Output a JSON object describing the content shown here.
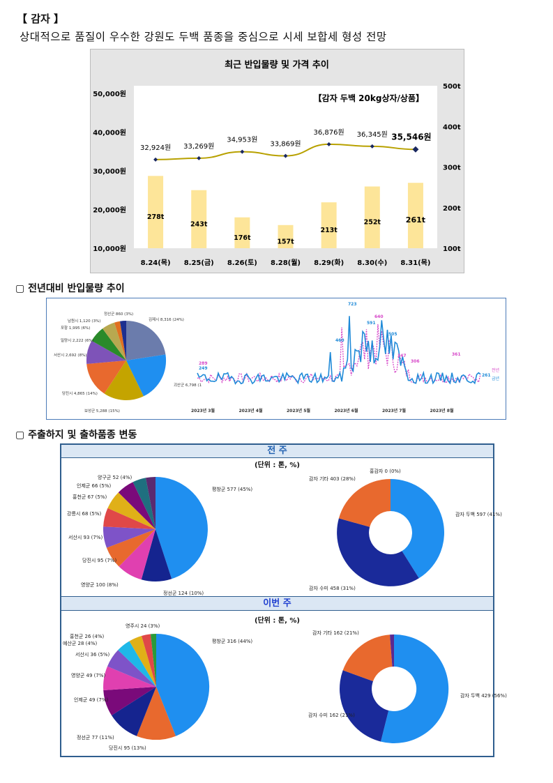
{
  "header": {
    "section_title": "【 감자 】",
    "subtitle": "상대적으로 품질이 우수한 강원도 두백 품종을 중심으로 시세 보합세 형성 전망"
  },
  "chart1": {
    "title": "최근 반입물량 및 가격 추이",
    "legend_note": "【감자 두백 20kg상자/상품】",
    "chart_data": {
      "type": "bar",
      "categories": [
        "8.24(목)",
        "8.25(금)",
        "8.26(토)",
        "8.28(월)",
        "8.29(화)",
        "8.30(수)",
        "8.31(목)"
      ],
      "series": [
        {
          "values": [
            278,
            243,
            176,
            157,
            213,
            252,
            261
          ],
          "labels": [
            "278t",
            "243t",
            "176t",
            "157t",
            "213t",
            "252t",
            "261t"
          ],
          "color": "#fde599"
        },
        {
          "values": [
            32924,
            33269,
            34953,
            33869,
            36876,
            36345,
            35546
          ],
          "labels": [
            "32,924원",
            "33,269원",
            "34,953원",
            "33,869원",
            "36,876원",
            "36,345원",
            "35,546원"
          ],
          "color": "#b8a100"
        }
      ],
      "y_left_ticks": [
        "10,000원",
        "20,000원",
        "30,000원",
        "40,000원",
        "50,000원"
      ],
      "y_left_range": [
        10000,
        52000
      ],
      "y_right_ticks": [
        "100t",
        "200t",
        "300t",
        "400t",
        "500t"
      ],
      "y_right_range": [
        100,
        500
      ]
    }
  },
  "section2": {
    "title": "▢ 전년대비 반입물량 추이",
    "pie_labels": [
      {
        "text": "김제시 8,316 (24%)"
      },
      {
        "text": "괴산군 6,798 (1"
      },
      {
        "text": "보성군 5,288 (15%)"
      },
      {
        "text": "당진시 4,865 (14%)"
      },
      {
        "text": "서산시 2,692 (8%)"
      },
      {
        "text": "밀양시 2,222 (6%)"
      },
      {
        "text": "포항 1,995 (6%)"
      },
      {
        "text": "남원시 1,120 (3%)"
      },
      {
        "text": "정선군 860 (3%)"
      }
    ],
    "line_chart": {
      "x_labels": [
        "2023년 3월",
        "2023년 4월",
        "2023년 5월",
        "2023년 6월",
        "2023년 7월",
        "2023년 8월"
      ],
      "peak_labels": [
        "723",
        "640",
        "591",
        "505",
        "460",
        "347",
        "361",
        "306",
        "261",
        "289",
        "249"
      ],
      "legend": [
        "전년",
        "금년"
      ]
    }
  },
  "section3": {
    "title": "▢ 주출하지 및 출하품종 변동",
    "prev_week": {
      "header": "전 주",
      "unit": "(단위 : 톤, %)",
      "pie_labels": [
        "평창군 577 (45%)",
        "정선군 124 (10%)",
        "영양군 100 (8%)",
        "당진시 95 (7%)",
        "서산시 93 (7%)",
        "강릉시 68 (5%)",
        "홍천군 67 (5%)",
        "인제군 66 (5%)",
        "양구군 52 (4%)"
      ],
      "donut_labels": [
        "감자 두백 597 (41%)",
        "감자 수미 458 (31%)",
        "감자 기타 403 (28%)",
        "홍감자 0 (0%)"
      ]
    },
    "this_week": {
      "header": "이번 주",
      "unit": "(단위 : 톤, %)",
      "pie_labels": [
        "평창군 316 (44%)",
        "당진시 95 (13%)",
        "정선군 77 (11%)",
        "인제군 49 (7%)",
        "영양군 49 (7%)",
        "서산시 36 (5%)",
        "예산군 28 (4%)",
        "홍천군 26 (4%)",
        "영주시 24 (3%)"
      ],
      "donut_labels": [
        "감자 두백 429 (56%)",
        "감자 수미 162 (21%)",
        "감자 기타 162 (21%)"
      ]
    }
  }
}
